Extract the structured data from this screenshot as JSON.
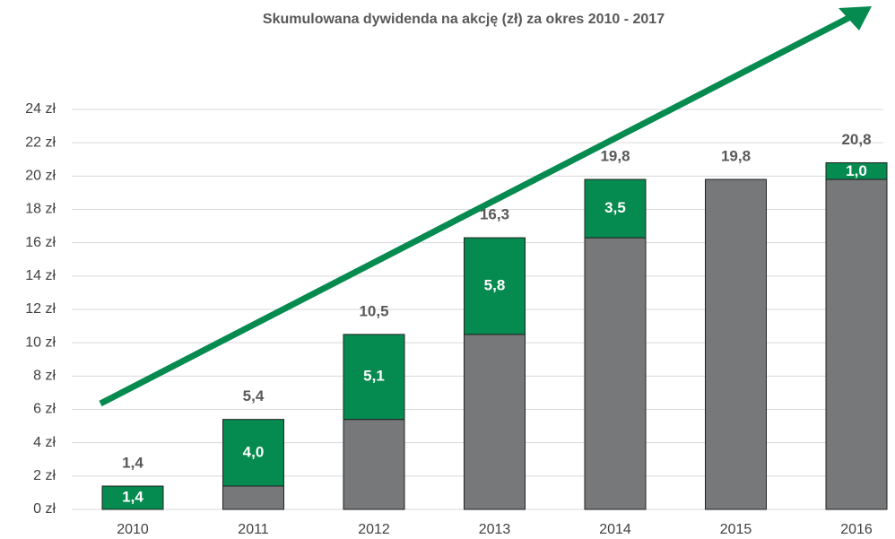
{
  "chart_data": {
    "type": "stacked_bar",
    "title": "Skumulowana dywidenda na akcję (zł) za okres 2010 - 2017",
    "categories": [
      "2010",
      "2011",
      "2012",
      "2013",
      "2014",
      "2015",
      "2016"
    ],
    "series": [
      {
        "color": "#76787a",
        "values": [
          0,
          1.4,
          5.4,
          10.5,
          16.3,
          19.8,
          19.8
        ]
      },
      {
        "color": "#058a4f",
        "values": [
          1.4,
          4.0,
          5.1,
          5.8,
          3.5,
          0,
          1.0
        ],
        "value_labels": [
          "1,4",
          "4,0",
          "5,1",
          "5,8",
          "3,5",
          null,
          "1,0"
        ]
      }
    ],
    "totals": [
      1.4,
      5.4,
      10.5,
      16.3,
      19.8,
      19.8,
      20.8
    ],
    "total_labels": [
      "1,4",
      "5,4",
      "10,5",
      "16,3",
      "19,8",
      "19,8",
      "20,8"
    ],
    "ylim": [
      0,
      24
    ],
    "yticks": [
      {
        "value": 0,
        "label": "0 zł"
      },
      {
        "value": 2,
        "label": "2 zł"
      },
      {
        "value": 4,
        "label": "4 zł"
      },
      {
        "value": 6,
        "label": "6 zł"
      },
      {
        "value": 8,
        "label": "8 zł"
      },
      {
        "value": 10,
        "label": "10 zł"
      },
      {
        "value": 12,
        "label": "12 zł"
      },
      {
        "value": 14,
        "label": "14 zł"
      },
      {
        "value": 16,
        "label": "16 zł"
      },
      {
        "value": 18,
        "label": "18 zł"
      },
      {
        "value": 20,
        "label": "20 zł"
      },
      {
        "value": 22,
        "label": "22 zł"
      },
      {
        "value": 24,
        "label": "24 zł"
      }
    ],
    "grid": true
  }
}
